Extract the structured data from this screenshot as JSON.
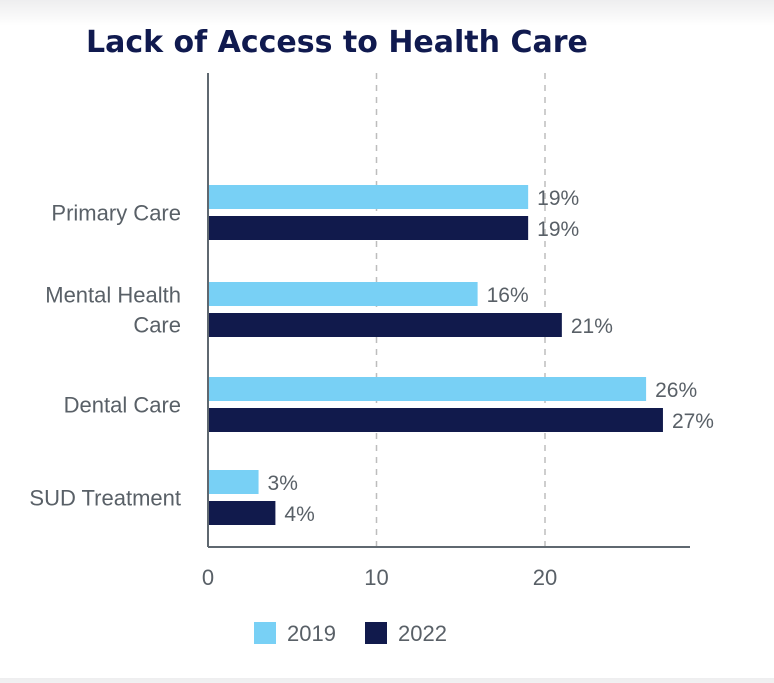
{
  "chart_data": {
    "type": "bar",
    "orientation": "horizontal",
    "title": "Lack of Access to Health Care",
    "categories": [
      [
        "Primary Care"
      ],
      [
        "Mental Health",
        "Care"
      ],
      [
        "Dental Care"
      ],
      [
        "SUD Treatment"
      ]
    ],
    "series": [
      {
        "name": "2019",
        "color": "#78d0f5",
        "values": [
          19,
          16,
          26,
          3
        ],
        "labels": [
          "19%",
          "16%",
          "26%",
          "3%"
        ]
      },
      {
        "name": "2022",
        "color": "#111a4c",
        "values": [
          19,
          21,
          27,
          4
        ],
        "labels": [
          "19%",
          "21%",
          "27%",
          "4%"
        ]
      }
    ],
    "x_ticks": [
      0,
      10,
      20
    ],
    "xlim": [
      0,
      28.5
    ],
    "grid": "vertical dashed",
    "legend_position": "bottom"
  }
}
